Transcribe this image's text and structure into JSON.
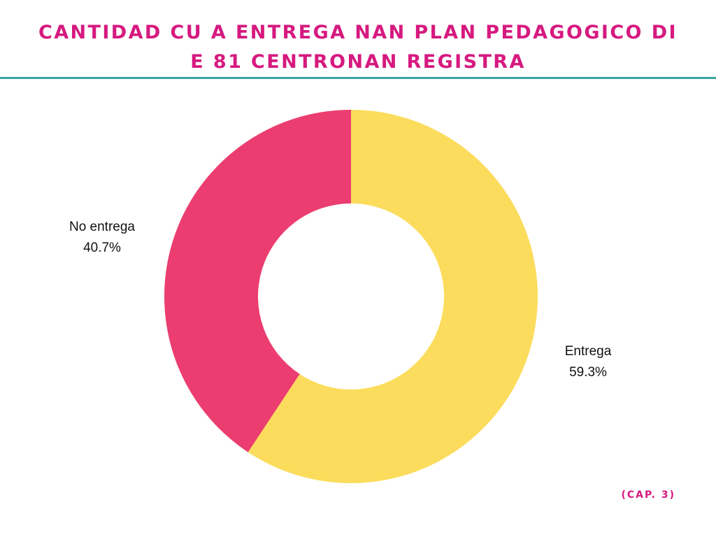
{
  "header": {
    "title_line1": "CANTIDAD CU A ENTREGA NAN PLAN PEDAGOGICO DI",
    "title_line2": "E 81 CENTRONAN REGISTRA"
  },
  "footer": {
    "note": "(CAP. 3)"
  },
  "colors": {
    "title": "#d6197f",
    "rule": "#3aa3a3",
    "entrega": "#fcdc5c",
    "no_entrega": "#eb3d6f"
  },
  "chart_data": {
    "type": "pie",
    "donut": true,
    "title": "CANTIDAD CU A ENTREGA NAN PLAN PEDAGOGICO DI E 81 CENTRONAN REGISTRA",
    "start": "12 o'clock, clockwise",
    "slices": [
      {
        "label": "Entrega",
        "value": 59.3,
        "value_label": "59.3%",
        "color": "#fcdc5c"
      },
      {
        "label": "No entrega",
        "value": 40.7,
        "value_label": "40.7%",
        "color": "#eb3d6f"
      }
    ]
  }
}
